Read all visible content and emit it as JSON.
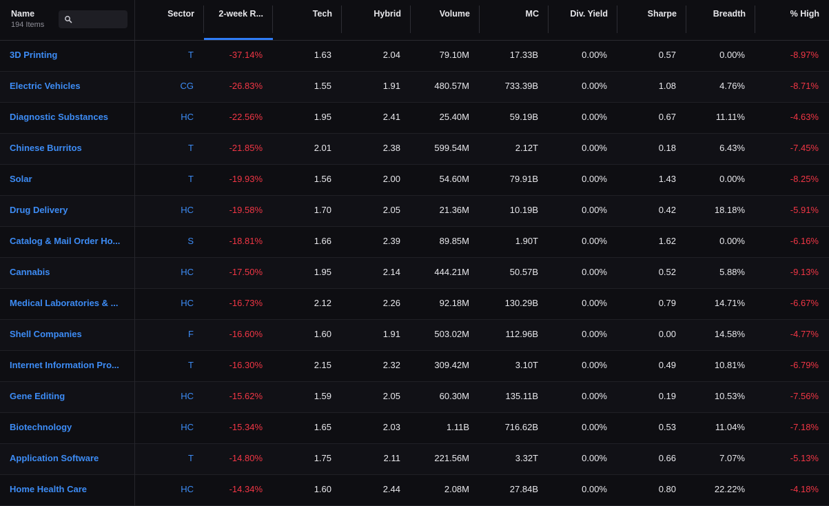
{
  "header": {
    "name_label": "Name",
    "item_count": "194 Items",
    "columns": [
      {
        "key": "sector",
        "label": "Sector"
      },
      {
        "key": "return_2w",
        "label": "2-week R..."
      },
      {
        "key": "tech",
        "label": "Tech"
      },
      {
        "key": "hybrid",
        "label": "Hybrid"
      },
      {
        "key": "volume",
        "label": "Volume"
      },
      {
        "key": "mc",
        "label": "MC"
      },
      {
        "key": "div_yield",
        "label": "Div. Yield"
      },
      {
        "key": "sharpe",
        "label": "Sharpe"
      },
      {
        "key": "breadth",
        "label": "Breadth"
      },
      {
        "key": "pct_high",
        "label": "% High"
      }
    ],
    "sorted_column": "return_2w"
  },
  "colors": {
    "link": "#3d8cf5",
    "negative": "#f23645",
    "accent": "#2f7cf6",
    "background": "#0e0e12"
  },
  "icons": {
    "search": "search-icon"
  },
  "rows": [
    {
      "name": "3D Printing",
      "sector": "T",
      "return_2w": "-37.14%",
      "tech": "1.63",
      "hybrid": "2.04",
      "volume": "79.10M",
      "mc": "17.33B",
      "div_yield": "0.00%",
      "sharpe": "0.57",
      "breadth": "0.00%",
      "pct_high": "-8.97%"
    },
    {
      "name": "Electric Vehicles",
      "sector": "CG",
      "return_2w": "-26.83%",
      "tech": "1.55",
      "hybrid": "1.91",
      "volume": "480.57M",
      "mc": "733.39B",
      "div_yield": "0.00%",
      "sharpe": "1.08",
      "breadth": "4.76%",
      "pct_high": "-8.71%"
    },
    {
      "name": "Diagnostic Substances",
      "sector": "HC",
      "return_2w": "-22.56%",
      "tech": "1.95",
      "hybrid": "2.41",
      "volume": "25.40M",
      "mc": "59.19B",
      "div_yield": "0.00%",
      "sharpe": "0.67",
      "breadth": "11.11%",
      "pct_high": "-4.63%"
    },
    {
      "name": "Chinese Burritos",
      "sector": "T",
      "return_2w": "-21.85%",
      "tech": "2.01",
      "hybrid": "2.38",
      "volume": "599.54M",
      "mc": "2.12T",
      "div_yield": "0.00%",
      "sharpe": "0.18",
      "breadth": "6.43%",
      "pct_high": "-7.45%"
    },
    {
      "name": "Solar",
      "sector": "T",
      "return_2w": "-19.93%",
      "tech": "1.56",
      "hybrid": "2.00",
      "volume": "54.60M",
      "mc": "79.91B",
      "div_yield": "0.00%",
      "sharpe": "1.43",
      "breadth": "0.00%",
      "pct_high": "-8.25%"
    },
    {
      "name": "Drug Delivery",
      "sector": "HC",
      "return_2w": "-19.58%",
      "tech": "1.70",
      "hybrid": "2.05",
      "volume": "21.36M",
      "mc": "10.19B",
      "div_yield": "0.00%",
      "sharpe": "0.42",
      "breadth": "18.18%",
      "pct_high": "-5.91%"
    },
    {
      "name": "Catalog & Mail Order Ho...",
      "sector": "S",
      "return_2w": "-18.81%",
      "tech": "1.66",
      "hybrid": "2.39",
      "volume": "89.85M",
      "mc": "1.90T",
      "div_yield": "0.00%",
      "sharpe": "1.62",
      "breadth": "0.00%",
      "pct_high": "-6.16%"
    },
    {
      "name": "Cannabis",
      "sector": "HC",
      "return_2w": "-17.50%",
      "tech": "1.95",
      "hybrid": "2.14",
      "volume": "444.21M",
      "mc": "50.57B",
      "div_yield": "0.00%",
      "sharpe": "0.52",
      "breadth": "5.88%",
      "pct_high": "-9.13%"
    },
    {
      "name": "Medical Laboratories & ...",
      "sector": "HC",
      "return_2w": "-16.73%",
      "tech": "2.12",
      "hybrid": "2.26",
      "volume": "92.18M",
      "mc": "130.29B",
      "div_yield": "0.00%",
      "sharpe": "0.79",
      "breadth": "14.71%",
      "pct_high": "-6.67%"
    },
    {
      "name": "Shell Companies",
      "sector": "F",
      "return_2w": "-16.60%",
      "tech": "1.60",
      "hybrid": "1.91",
      "volume": "503.02M",
      "mc": "112.96B",
      "div_yield": "0.00%",
      "sharpe": "0.00",
      "breadth": "14.58%",
      "pct_high": "-4.77%"
    },
    {
      "name": "Internet Information Pro...",
      "sector": "T",
      "return_2w": "-16.30%",
      "tech": "2.15",
      "hybrid": "2.32",
      "volume": "309.42M",
      "mc": "3.10T",
      "div_yield": "0.00%",
      "sharpe": "0.49",
      "breadth": "10.81%",
      "pct_high": "-6.79%"
    },
    {
      "name": "Gene Editing",
      "sector": "HC",
      "return_2w": "-15.62%",
      "tech": "1.59",
      "hybrid": "2.05",
      "volume": "60.30M",
      "mc": "135.11B",
      "div_yield": "0.00%",
      "sharpe": "0.19",
      "breadth": "10.53%",
      "pct_high": "-7.56%"
    },
    {
      "name": "Biotechnology",
      "sector": "HC",
      "return_2w": "-15.34%",
      "tech": "1.65",
      "hybrid": "2.03",
      "volume": "1.11B",
      "mc": "716.62B",
      "div_yield": "0.00%",
      "sharpe": "0.53",
      "breadth": "11.04%",
      "pct_high": "-7.18%"
    },
    {
      "name": "Application Software",
      "sector": "T",
      "return_2w": "-14.80%",
      "tech": "1.75",
      "hybrid": "2.11",
      "volume": "221.56M",
      "mc": "3.32T",
      "div_yield": "0.00%",
      "sharpe": "0.66",
      "breadth": "7.07%",
      "pct_high": "-5.13%"
    },
    {
      "name": "Home Health Care",
      "sector": "HC",
      "return_2w": "-14.34%",
      "tech": "1.60",
      "hybrid": "2.44",
      "volume": "2.08M",
      "mc": "27.84B",
      "div_yield": "0.00%",
      "sharpe": "0.80",
      "breadth": "22.22%",
      "pct_high": "-4.18%"
    }
  ]
}
